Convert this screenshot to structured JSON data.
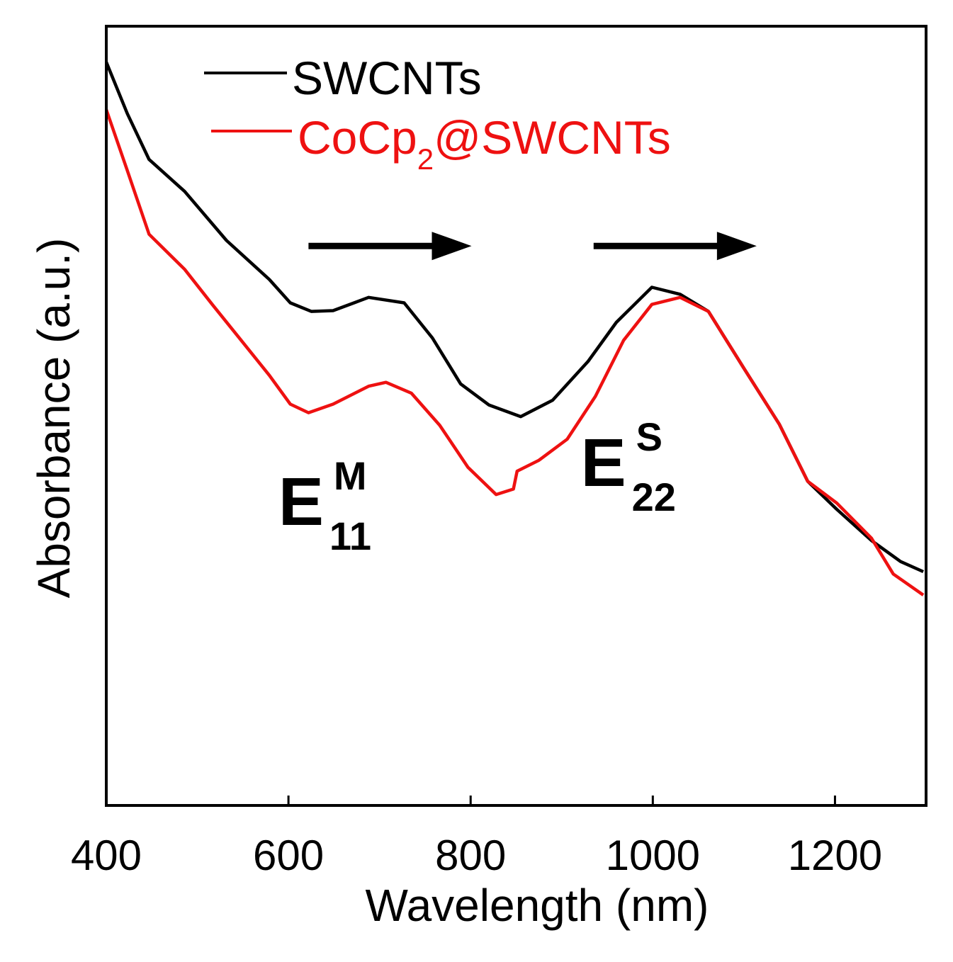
{
  "chart_data": {
    "type": "line",
    "title": "",
    "xlabel": "Wavelength (nm)",
    "ylabel": "Absorbance (a.u.)",
    "xlim": [
      400,
      1300
    ],
    "ylim": [
      0,
      1
    ],
    "xticks": [
      400,
      600,
      800,
      1000,
      1200
    ],
    "xtick_labels": [
      "400",
      "600",
      "800",
      "1000",
      "1200"
    ],
    "grid": false,
    "legend_placement": "top-left",
    "series": [
      {
        "name": "SWCNTs",
        "color": "#000000",
        "x": [
          400,
          423,
          447,
          486,
          532,
          579,
          602,
          625,
          649,
          672,
          688,
          727,
          758,
          789,
          820,
          855,
          890,
          929,
          960,
          999,
          1030,
          1061,
          1100,
          1139,
          1170,
          1202,
          1240,
          1272,
          1297
        ],
        "y": [
          0.954,
          0.888,
          0.829,
          0.788,
          0.725,
          0.675,
          0.645,
          0.634,
          0.635,
          0.645,
          0.652,
          0.645,
          0.6,
          0.541,
          0.514,
          0.499,
          0.52,
          0.57,
          0.62,
          0.665,
          0.656,
          0.634,
          0.561,
          0.489,
          0.416,
          0.38,
          0.34,
          0.313,
          0.3
        ]
      },
      {
        "name": "CoCp2@SWCNTs",
        "legend_main": "CoCp",
        "legend_sub": "2",
        "legend_tail": "@SWCNTs",
        "color": "#ee1111",
        "x": [
          400,
          423,
          447,
          486,
          517,
          548,
          579,
          602,
          622,
          649,
          688,
          707,
          735,
          766,
          797,
          828,
          847,
          851,
          875,
          906,
          937,
          968,
          999,
          1030,
          1061,
          1100,
          1139,
          1170,
          1202,
          1240,
          1264,
          1297
        ],
        "y": [
          0.893,
          0.815,
          0.733,
          0.688,
          0.642,
          0.597,
          0.552,
          0.515,
          0.504,
          0.515,
          0.538,
          0.543,
          0.529,
          0.488,
          0.434,
          0.399,
          0.406,
          0.429,
          0.443,
          0.47,
          0.525,
          0.597,
          0.643,
          0.652,
          0.634,
          0.561,
          0.489,
          0.416,
          0.388,
          0.343,
          0.297,
          0.27
        ]
      }
    ],
    "annotations": [
      {
        "label": "E",
        "sup": "M",
        "sub": "11",
        "x": 655,
        "y": 0.36
      },
      {
        "label": "E",
        "sup": "S",
        "sub": "22",
        "x": 987,
        "y": 0.41
      }
    ],
    "arrows": [
      {
        "x0": 622,
        "x1": 801,
        "y": 0.718
      },
      {
        "x0": 935,
        "x1": 1114,
        "y": 0.718
      }
    ]
  }
}
